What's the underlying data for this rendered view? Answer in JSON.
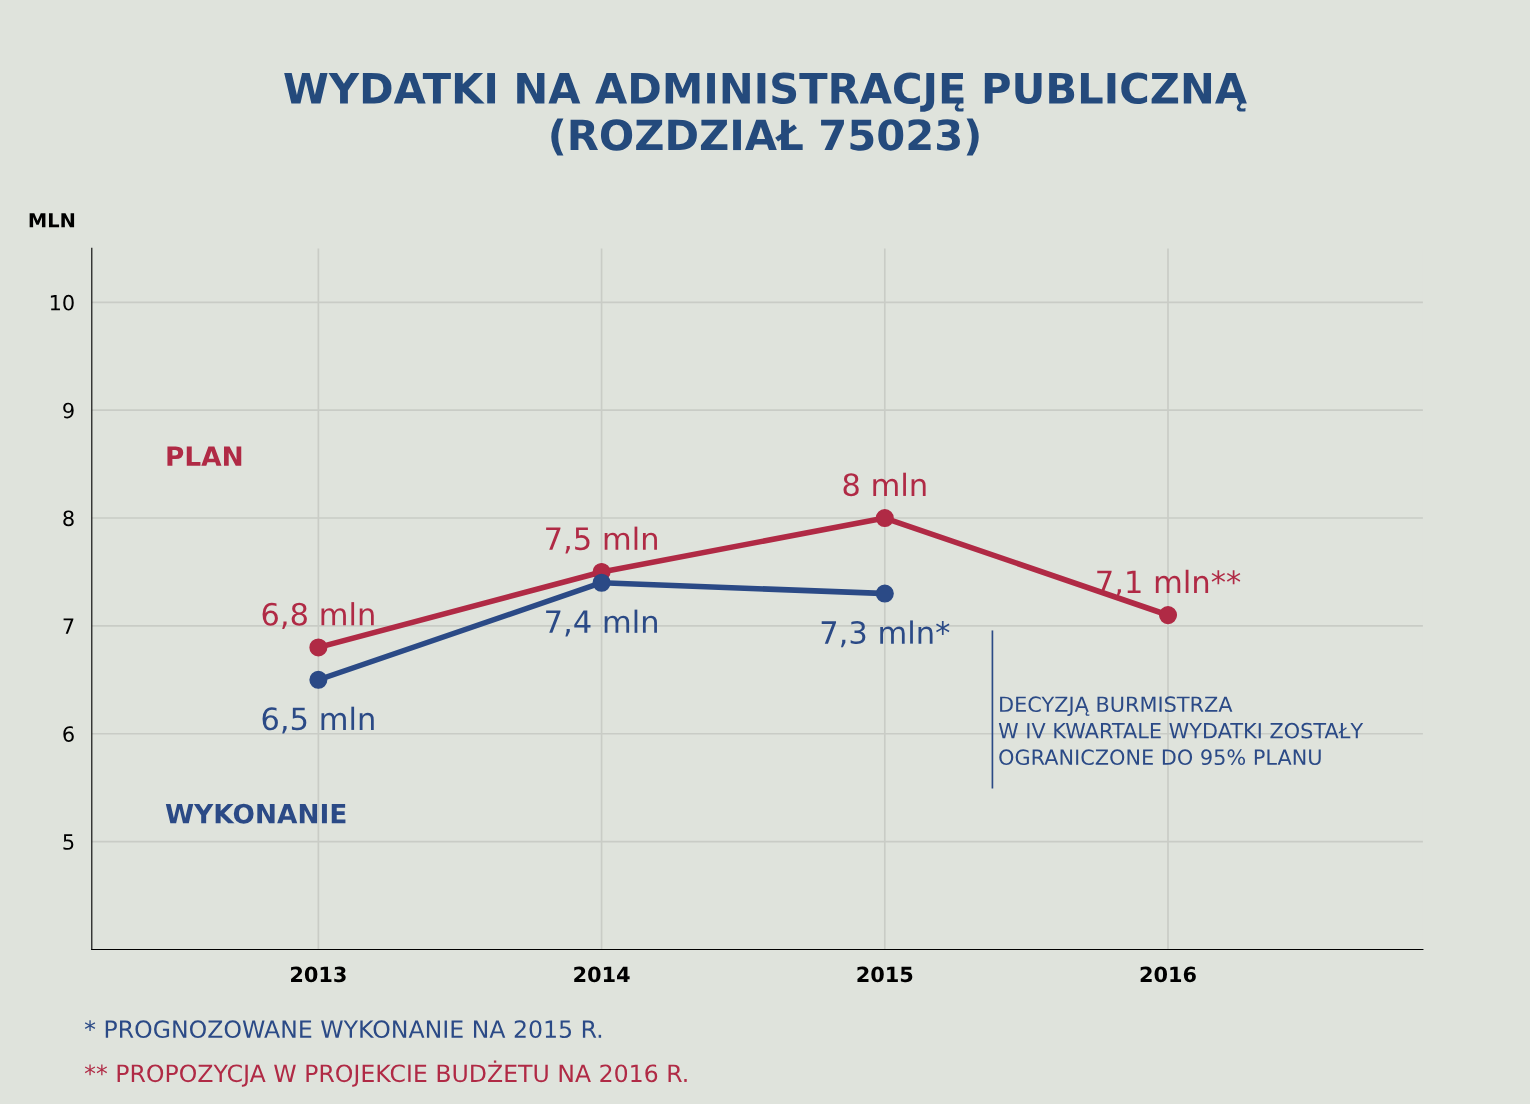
{
  "chart_data": {
    "type": "line",
    "title": "WYDATKI NA ADMINISTRACJĘ PUBLICZNĄ\n(ROZDZIAŁ 75023)",
    "ylabel": "MLN",
    "categories": [
      "2013",
      "2014",
      "2015",
      "2016"
    ],
    "series": [
      {
        "name": "PLAN",
        "color": "#b02a45",
        "values": [
          6.8,
          7.5,
          8,
          7.1
        ],
        "value_labels": [
          "6,8 mln",
          "7,5 mln",
          "8 mln",
          "7,1 mln**"
        ]
      },
      {
        "name": "WYKONANIE",
        "color": "#2b4a86",
        "values": [
          6.5,
          7.4,
          7.3,
          null
        ],
        "value_labels": [
          "6,5 mln",
          "7,4 mln",
          "7,3 mln*",
          null
        ]
      }
    ],
    "ylim": [
      4,
      10.5
    ],
    "yticks": [
      5,
      6,
      7,
      8,
      9,
      10
    ],
    "grid": true,
    "marker": "circle",
    "line_style": "solid",
    "legend": false,
    "annotations": [
      "DECYZJĄ BURMISTRZA\nW IV KWARTALE WYDATKI ZOSTAŁY\nOGRANICZONE DO 95% PLANU",
      "* PROGNOZOWANE WYKONANIE NA 2015 R.",
      "** PROPOZYCJA W PROJEKCIE BUDŻETU NA 2016 R."
    ]
  }
}
